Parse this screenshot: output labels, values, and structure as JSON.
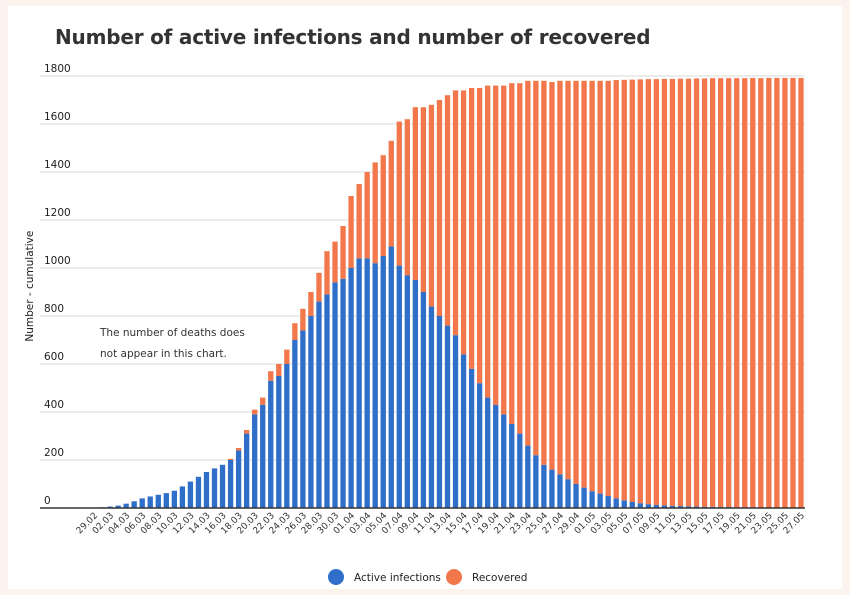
{
  "chart_data": {
    "type": "bar",
    "stacked": true,
    "title": "Number of active infections and number of recovered",
    "ylabel": "Number - cumulative",
    "xlabel": "",
    "ylim": [
      0,
      1800
    ],
    "yticks": [
      0,
      200,
      400,
      600,
      800,
      1000,
      1200,
      1400,
      1600,
      1800
    ],
    "grid": "horizontal",
    "legend_position": "bottom",
    "annotation_lines": [
      "The number of deaths does",
      "not appear in this chart."
    ],
    "categories": [
      "29.02",
      "01.03",
      "02.03",
      "03.03",
      "04.03",
      "05.03",
      "06.03",
      "07.03",
      "08.03",
      "09.03",
      "10.03",
      "11.03",
      "12.03",
      "13.03",
      "14.03",
      "15.03",
      "16.03",
      "17.03",
      "18.03",
      "19.03",
      "20.03",
      "21.03",
      "22.03",
      "23.03",
      "24.03",
      "25.03",
      "26.03",
      "27.03",
      "28.03",
      "29.03",
      "30.03",
      "31.03",
      "01.04",
      "02.04",
      "03.04",
      "04.04",
      "05.04",
      "06.04",
      "07.04",
      "08.04",
      "09.04",
      "10.04",
      "11.04",
      "12.04",
      "13.04",
      "14.04",
      "15.04",
      "16.04",
      "17.04",
      "18.04",
      "19.04",
      "20.04",
      "21.04",
      "22.04",
      "23.04",
      "24.04",
      "25.04",
      "26.04",
      "27.04",
      "28.04",
      "29.04",
      "30.04",
      "01.05",
      "02.05",
      "03.05",
      "04.05",
      "05.05",
      "06.05",
      "07.05",
      "08.05",
      "09.05",
      "10.05",
      "11.05",
      "12.05",
      "13.05",
      "14.05",
      "15.05",
      "16.05",
      "17.05",
      "18.05",
      "19.05",
      "20.05",
      "21.05",
      "22.05",
      "23.05",
      "24.05",
      "25.05",
      "26.05",
      "27.05"
    ],
    "x_tick_labels": [
      "29.02",
      "02.03",
      "04.03",
      "06.03",
      "08.03",
      "10.03",
      "12.03",
      "14.03",
      "16.03",
      "18.03",
      "20.03",
      "22.03",
      "24.03",
      "26.03",
      "28.03",
      "30.03",
      "01.04",
      "03.04",
      "05.04",
      "07.04",
      "09.04",
      "11.04",
      "13.04",
      "15.04",
      "17.04",
      "19.04",
      "21.04",
      "23.04",
      "25.04",
      "27.04",
      "29.04",
      "01.05",
      "03.05",
      "05.05",
      "07.05",
      "09.05",
      "11.05",
      "13.05",
      "15.05",
      "17.05",
      "19.05",
      "21.05",
      "23.05",
      "25.05",
      "27.05"
    ],
    "series": [
      {
        "name": "Active infections",
        "color": "#2f6ec9",
        "values": [
          1,
          3,
          6,
          10,
          18,
          28,
          40,
          48,
          55,
          62,
          72,
          90,
          110,
          130,
          150,
          165,
          180,
          200,
          240,
          310,
          390,
          430,
          530,
          550,
          600,
          700,
          740,
          800,
          860,
          890,
          940,
          955,
          1000,
          1040,
          1040,
          1020,
          1050,
          1090,
          1010,
          970,
          950,
          900,
          840,
          800,
          760,
          720,
          640,
          580,
          520,
          460,
          430,
          390,
          350,
          310,
          260,
          220,
          180,
          160,
          140,
          120,
          100,
          85,
          70,
          60,
          50,
          40,
          32,
          25,
          20,
          16,
          13,
          11,
          9,
          8,
          7,
          6,
          5,
          5,
          4,
          4,
          3,
          3,
          3,
          2,
          2,
          2,
          2,
          2,
          2
        ]
      },
      {
        "name": "Recovered",
        "color": "#f2774b",
        "values": [
          0,
          0,
          0,
          0,
          0,
          0,
          0,
          0,
          0,
          0,
          0,
          0,
          0,
          0,
          0,
          0,
          0,
          5,
          10,
          15,
          20,
          30,
          40,
          50,
          60,
          70,
          90,
          100,
          120,
          180,
          170,
          220,
          300,
          310,
          360,
          420,
          420,
          440,
          600,
          650,
          720,
          770,
          840,
          900,
          960,
          1020,
          1100,
          1170,
          1230,
          1300,
          1330,
          1370,
          1420,
          1460,
          1520,
          1560,
          1600,
          1615,
          1640,
          1660,
          1680,
          1695,
          1710,
          1720,
          1730,
          1743,
          1752,
          1760,
          1766,
          1771,
          1774,
          1777,
          1779,
          1781,
          1782,
          1784,
          1785,
          1786,
          1787,
          1787,
          1788,
          1788,
          1789,
          1789,
          1790,
          1790,
          1790,
          1790,
          1790
        ]
      }
    ]
  }
}
